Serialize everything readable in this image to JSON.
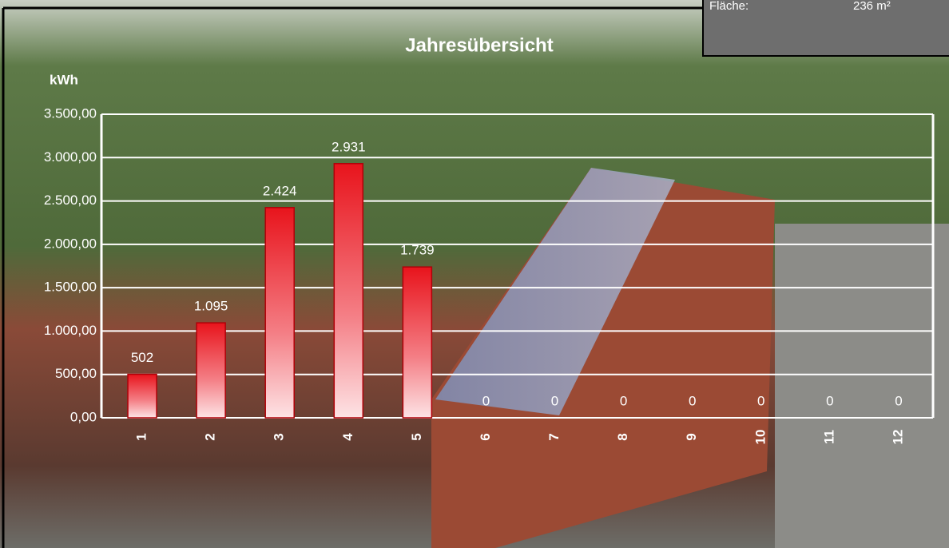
{
  "chart_data": {
    "type": "bar",
    "title": "Jahresübersicht",
    "y_label": "kWh",
    "categories": [
      "1",
      "2",
      "3",
      "4",
      "5",
      "6",
      "7",
      "8",
      "9",
      "10",
      "11",
      "12"
    ],
    "values": [
      502,
      1095,
      2424,
      2931,
      1739,
      0,
      0,
      0,
      0,
      0,
      0,
      0
    ],
    "value_labels": [
      "502",
      "1.095",
      "2.424",
      "2.931",
      "1.739",
      "0",
      "0",
      "0",
      "0",
      "0",
      "0",
      "0"
    ],
    "color": "#e8141c",
    "ylim": [
      0,
      3500
    ],
    "yticks": [
      {
        "value": 0,
        "label": "0,00"
      },
      {
        "value": 500,
        "label": "500,00"
      },
      {
        "value": 1000,
        "label": "1.000,00"
      },
      {
        "value": 1500,
        "label": "1.500,00"
      },
      {
        "value": 2000,
        "label": "2.000,00"
      },
      {
        "value": 2500,
        "label": "2.500,00"
      },
      {
        "value": 3000,
        "label": "3.000,00"
      },
      {
        "value": 3500,
        "label": "3.500,00"
      }
    ],
    "grid": true
  },
  "info_box": {
    "label": "Fläche:",
    "value": "236 m²"
  }
}
